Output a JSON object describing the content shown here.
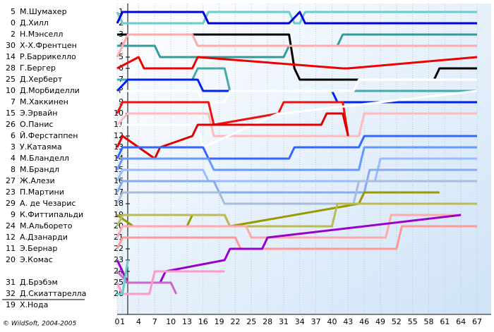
{
  "chart_data": {
    "type": "line",
    "footer": "© WildSoft, 2004-2005",
    "xlim": [
      0,
      67
    ],
    "xticks": [
      0,
      1,
      4,
      7,
      10,
      13,
      16,
      19,
      22,
      25,
      28,
      31,
      34,
      37,
      40,
      43,
      46,
      49,
      52,
      55,
      58,
      61,
      64,
      67
    ],
    "ylim": [
      1,
      26
    ],
    "yticks": [
      1,
      2,
      3,
      4,
      5,
      6,
      7,
      8,
      9,
      10,
      11,
      12,
      13,
      14,
      15,
      16,
      17,
      18,
      19,
      20,
      21,
      22,
      23,
      24,
      25,
      26
    ],
    "grid": true,
    "series": [
      {
        "number": 5,
        "name": "М.Шумахер",
        "color": "#66cccc",
        "x": [
          0,
          1,
          16,
          17,
          32,
          33,
          34,
          35,
          67
        ],
        "values": [
          1,
          2,
          2,
          1,
          1,
          2,
          2,
          1,
          1
        ]
      },
      {
        "number": 0,
        "name": "Д.Хилл",
        "color": "#0000dd",
        "x": [
          0,
          1,
          16,
          17,
          32,
          34,
          35,
          67
        ],
        "values": [
          2,
          1,
          1,
          2,
          2,
          1,
          2,
          2
        ]
      },
      {
        "number": 2,
        "name": "Н.Мэнселл",
        "color": "#000000",
        "x": [
          0,
          1,
          32,
          33,
          34,
          59,
          60,
          67
        ],
        "values": [
          3,
          3,
          3,
          6,
          7,
          7,
          6,
          6
        ]
      },
      {
        "number": 30,
        "name": "Х-Х.Френтцен",
        "color": "#339999",
        "x": [
          0,
          1,
          7,
          8,
          31,
          32,
          41,
          42,
          67
        ],
        "values": [
          4,
          4,
          4,
          5,
          5,
          4,
          4,
          3,
          3
        ]
      },
      {
        "number": 14,
        "name": "Р.Баррикелло",
        "color": "#ffaaaa",
        "x": [
          0,
          1,
          2,
          14,
          15,
          25,
          26,
          67
        ],
        "values": [
          5,
          4,
          3,
          3,
          4,
          4,
          4,
          4
        ]
      },
      {
        "number": 28,
        "name": "Г.Бергер",
        "color": "#ee0000",
        "x": [
          0,
          4,
          5,
          14,
          15,
          42,
          43,
          67
        ],
        "values": [
          6,
          5,
          6,
          6,
          5,
          6,
          6,
          5
        ]
      },
      {
        "number": 25,
        "name": "Д.Херберт",
        "color": "#44aaaa",
        "x": [
          0,
          1,
          14,
          15,
          20,
          21,
          67
        ],
        "values": [
          7,
          7,
          7,
          6,
          6,
          8,
          8
        ]
      },
      {
        "number": 10,
        "name": "Д.Морбиделли",
        "color": "#0022ee",
        "x": [
          0,
          2,
          15,
          16,
          40,
          41,
          67
        ],
        "values": [
          8,
          7,
          7,
          8,
          8,
          9,
          9
        ]
      },
      {
        "number": 7,
        "name": "М.Хаккинен",
        "color": "#ffffff",
        "x": [
          0,
          1,
          15,
          16,
          20,
          21,
          44,
          45,
          67
        ],
        "values": [
          9,
          8,
          8,
          9,
          9,
          8,
          8,
          7,
          7
        ]
      },
      {
        "number": 15,
        "name": "Э.Эрвайн",
        "color": "#ee1111",
        "x": [
          0,
          1,
          17,
          18,
          30,
          31,
          42,
          43
        ],
        "values": [
          10,
          9,
          9,
          11,
          10,
          9,
          9,
          12
        ]
      },
      {
        "number": 26,
        "name": "О.Панис",
        "color": "#ffbbbb",
        "x": [
          0,
          2,
          17,
          18,
          45,
          46,
          67
        ],
        "values": [
          11,
          10,
          10,
          12,
          12,
          10,
          10
        ]
      },
      {
        "number": 6,
        "name": "Й.Ферстаппен",
        "color": "#ffffff",
        "x": [
          0,
          1,
          15,
          16,
          30,
          31,
          67
        ],
        "values": [
          12,
          11,
          11,
          13,
          10,
          10,
          8
        ]
      },
      {
        "number": 3,
        "name": "У.Катаяма",
        "color": "#dd0000",
        "x": [
          0,
          1,
          7,
          8,
          14,
          15,
          38,
          39,
          42,
          43
        ],
        "values": [
          13,
          12,
          14,
          13,
          12,
          11,
          11,
          10,
          10,
          12
        ]
      },
      {
        "number": 4,
        "name": "М.Бланделл",
        "color": "#3366ff",
        "x": [
          0,
          1,
          16,
          17,
          32,
          33,
          45,
          46,
          67
        ],
        "values": [
          14,
          13,
          13,
          14,
          14,
          13,
          13,
          12,
          12
        ]
      },
      {
        "number": 8,
        "name": "М.Брандл",
        "color": "#6699ff",
        "x": [
          0,
          1,
          17,
          18,
          45,
          46,
          67
        ],
        "values": [
          15,
          14,
          14,
          15,
          15,
          13,
          13
        ]
      },
      {
        "number": 27,
        "name": "Ж.Алези",
        "color": "#99bbff",
        "x": [
          0,
          1,
          16,
          17,
          48,
          49,
          67
        ],
        "values": [
          16,
          15,
          15,
          16,
          16,
          14,
          14
        ]
      },
      {
        "number": 23,
        "name": "П.Мартини",
        "color": "#88aaee",
        "x": [
          0,
          1,
          18,
          19,
          46,
          47,
          67
        ],
        "values": [
          17,
          16,
          16,
          17,
          17,
          15,
          15
        ]
      },
      {
        "number": 29,
        "name": "А. де Чезарис",
        "color": "#aabbdd",
        "x": [
          0,
          1,
          19,
          20,
          44,
          45,
          67
        ],
        "values": [
          18,
          17,
          17,
          18,
          18,
          16,
          16
        ]
      },
      {
        "number": 9,
        "name": "К.Фиттипальди",
        "color": "#999900",
        "x": [
          0,
          3,
          13,
          14,
          20,
          21,
          45,
          46,
          60
        ],
        "values": [
          19,
          20,
          20,
          19,
          19,
          20,
          18,
          17,
          17
        ]
      },
      {
        "number": 24,
        "name": "М.Альборето",
        "color": "#bbbb55",
        "x": [
          0,
          1,
          20,
          21,
          40,
          41,
          67
        ],
        "values": [
          20,
          19,
          19,
          20,
          20,
          18,
          18
        ]
      },
      {
        "number": 12,
        "name": "А.Дзанарди",
        "color": "#ffaaaa",
        "x": [
          0,
          1,
          24,
          25,
          50,
          51,
          64
        ],
        "values": [
          21,
          20,
          20,
          21,
          21,
          19,
          19
        ]
      },
      {
        "number": 11,
        "name": "Э.Бернар",
        "color": "#ff9999",
        "x": [
          0,
          1,
          22,
          23,
          52,
          53,
          67
        ],
        "values": [
          22,
          21,
          21,
          22,
          22,
          20,
          20
        ]
      },
      {
        "number": 20,
        "name": "Э.Комас",
        "color": "#9900cc",
        "x": [
          0,
          1,
          2,
          8,
          9,
          20,
          21,
          27,
          28,
          64
        ],
        "values": [
          23,
          24,
          25,
          25,
          24,
          23,
          22,
          22,
          21,
          19
        ]
      },
      {
        "number": 31,
        "name": "Д.Брэбэм",
        "color": "#cc66cc",
        "x": [
          0,
          2,
          10,
          11
        ],
        "values": [
          24,
          25,
          25,
          26
        ]
      },
      {
        "number": 32,
        "name": "Д.Скиаттарелла",
        "color": "#ff99cc",
        "x": [
          0,
          1,
          6,
          7,
          20
        ],
        "values": [
          25,
          26,
          26,
          24,
          24
        ]
      },
      {
        "number": 19,
        "name": "Х.Нода",
        "color": "#66cccc",
        "x": [
          0,
          1,
          2
        ],
        "values": [
          26,
          26,
          23
        ]
      }
    ]
  }
}
